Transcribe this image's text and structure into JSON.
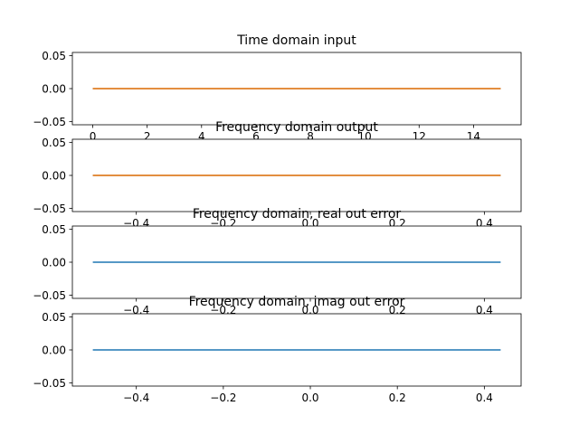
{
  "chart_data": [
    {
      "type": "line",
      "title": "Time domain input",
      "xlabel": "",
      "ylabel": "",
      "xlim": [
        -0.75,
        15.75
      ],
      "ylim": [
        -0.055,
        0.055
      ],
      "x_ticks": [
        0,
        2,
        4,
        6,
        8,
        10,
        12,
        14
      ],
      "x_tick_labels": [
        "0",
        "2",
        "4",
        "6",
        "8",
        "10",
        "12",
        "14"
      ],
      "y_ticks": [
        0.05,
        0.0,
        -0.05
      ],
      "y_tick_labels": [
        "0.05",
        "0.00",
        "−0.05"
      ],
      "grid": false,
      "series": [
        {
          "color": "#1f77b4",
          "x": [
            0,
            15
          ],
          "y": [
            0.0,
            0.0
          ]
        },
        {
          "color": "#ff7f0e",
          "x": [
            0,
            15
          ],
          "y": [
            0.0,
            0.0
          ]
        }
      ]
    },
    {
      "type": "line",
      "title": "Frequency domain output",
      "xlabel": "",
      "ylabel": "",
      "xlim": [
        -0.547,
        0.4845
      ],
      "ylim": [
        -0.055,
        0.055
      ],
      "x_ticks": [
        -0.4,
        -0.2,
        0.0,
        0.2,
        0.4
      ],
      "x_tick_labels": [
        "−0.4",
        "−0.2",
        "0.0",
        "0.2",
        "0.4"
      ],
      "y_ticks": [
        0.05,
        0.0,
        -0.05
      ],
      "y_tick_labels": [
        "0.05",
        "0.00",
        "−0.05"
      ],
      "grid": false,
      "series": [
        {
          "color": "#1f77b4",
          "x": [
            -0.5,
            0.4375
          ],
          "y": [
            0.0,
            0.0
          ]
        },
        {
          "color": "#ff7f0e",
          "x": [
            -0.5,
            0.4375
          ],
          "y": [
            0.0,
            0.0
          ]
        }
      ]
    },
    {
      "type": "line",
      "title": "Frequency domain, real out error",
      "xlabel": "",
      "ylabel": "",
      "xlim": [
        -0.547,
        0.4845
      ],
      "ylim": [
        -0.055,
        0.055
      ],
      "x_ticks": [
        -0.4,
        -0.2,
        0.0,
        0.2,
        0.4
      ],
      "x_tick_labels": [
        "−0.4",
        "−0.2",
        "0.0",
        "0.2",
        "0.4"
      ],
      "y_ticks": [
        0.05,
        0.0,
        -0.05
      ],
      "y_tick_labels": [
        "0.05",
        "0.00",
        "−0.05"
      ],
      "grid": false,
      "series": [
        {
          "color": "#1f77b4",
          "x": [
            -0.5,
            0.4375
          ],
          "y": [
            0.0,
            0.0
          ]
        }
      ]
    },
    {
      "type": "line",
      "title": "Frequency domain, imag out error",
      "xlabel": "",
      "ylabel": "",
      "xlim": [
        -0.547,
        0.4845
      ],
      "ylim": [
        -0.055,
        0.055
      ],
      "x_ticks": [
        -0.4,
        -0.2,
        0.0,
        0.2,
        0.4
      ],
      "x_tick_labels": [
        "−0.4",
        "−0.2",
        "0.0",
        "0.2",
        "0.4"
      ],
      "y_ticks": [
        0.05,
        0.0,
        -0.05
      ],
      "y_tick_labels": [
        "0.05",
        "0.00",
        "−0.05"
      ],
      "grid": false,
      "series": [
        {
          "color": "#1f77b4",
          "x": [
            -0.5,
            0.4375
          ],
          "y": [
            0.0,
            0.0
          ]
        }
      ]
    }
  ]
}
